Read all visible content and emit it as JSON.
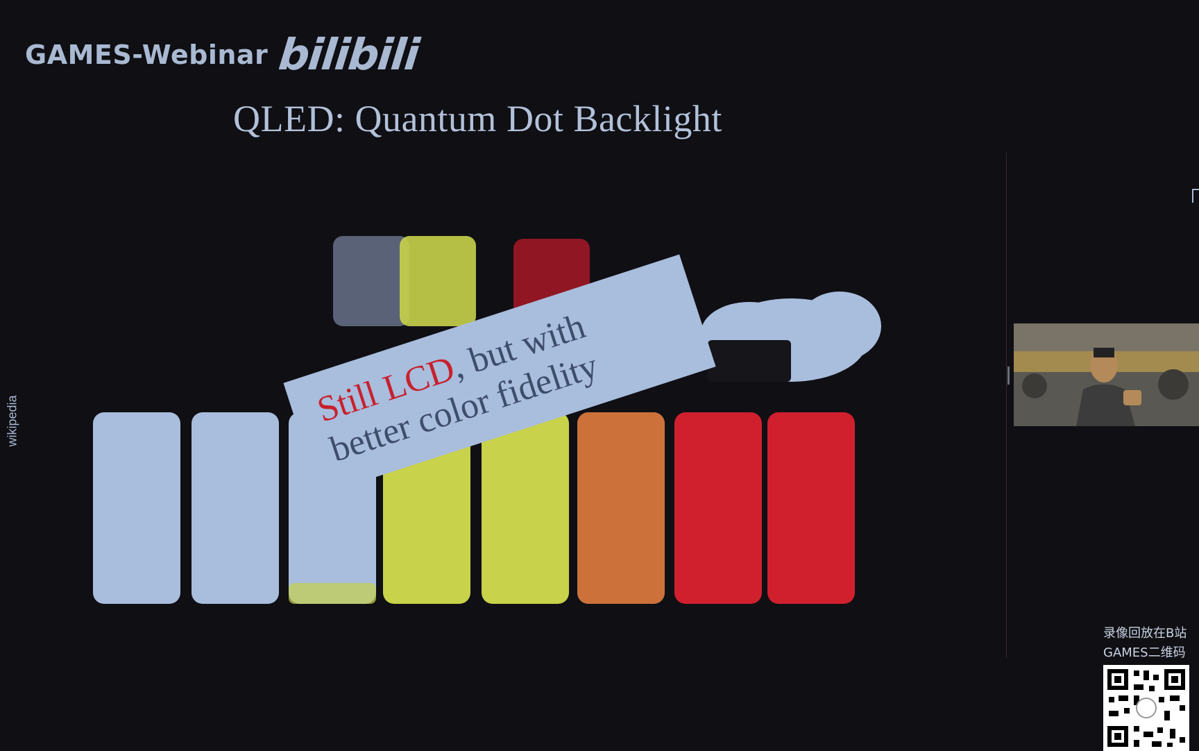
{
  "brand": {
    "name": "GAMES-Webinar",
    "logo": "bilibili"
  },
  "slide": {
    "title": "QLED: Quantum Dot Backlight",
    "credit": "wikipedia",
    "callout": {
      "highlight": "Still LCD",
      "rest_line1": ", but with",
      "line2": "better color fidelity"
    }
  },
  "overlay": {
    "replay_line1": "录像回放在B站",
    "replay_line2": "GAMES二维码"
  },
  "colors": {
    "background": "#0f0f14",
    "text": "#b2c1d9",
    "callout_bg": "#a9bddd",
    "highlight": "#c8202c",
    "vial_blue": "#a9bddd",
    "vial_yellow": "#c8d24a",
    "vial_red": "#d0202e"
  },
  "icons": [
    "bilibili-logo",
    "qr-code-icon",
    "webcam-feed"
  ]
}
